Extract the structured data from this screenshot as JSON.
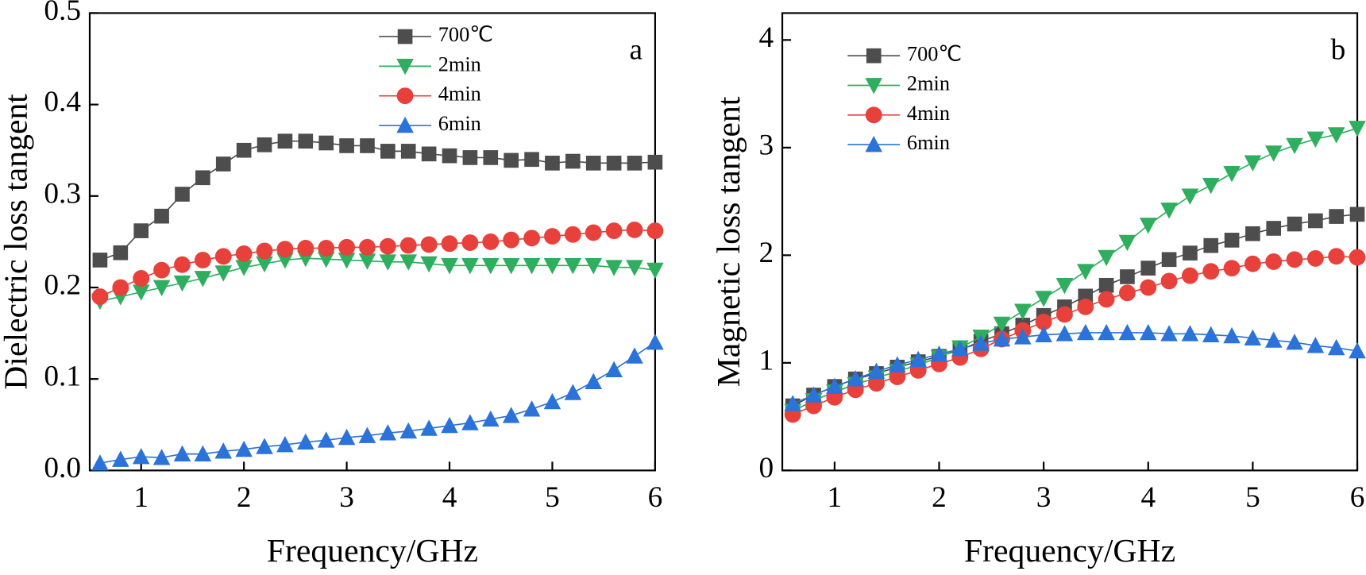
{
  "chart_data": [
    {
      "type": "line",
      "label": "a",
      "xlabel": "Frequency/GHz",
      "ylabel": "Dielectric loss tangent",
      "xlim": [
        0.5,
        6
      ],
      "xticks": [
        1,
        2,
        3,
        4,
        5,
        6
      ],
      "ylim": [
        0,
        0.5
      ],
      "yticks": [
        {
          "value": 0,
          "label": "0.0"
        },
        0.1,
        0.2,
        0.3,
        0.4,
        0.5
      ],
      "x": [
        0.6,
        0.8,
        1.0,
        1.2,
        1.4,
        1.6,
        1.8,
        2.0,
        2.2,
        2.4,
        2.6,
        2.8,
        3.0,
        3.2,
        3.4,
        3.6,
        3.8,
        4.0,
        4.2,
        4.4,
        4.6,
        4.8,
        5.0,
        5.2,
        5.4,
        5.6,
        5.8,
        6.0
      ],
      "series": [
        {
          "name": "700℃",
          "color": "#4d4d4d",
          "marker": "square",
          "values": [
            0.23,
            0.238,
            0.262,
            0.278,
            0.302,
            0.32,
            0.335,
            0.35,
            0.356,
            0.36,
            0.36,
            0.358,
            0.355,
            0.355,
            0.349,
            0.349,
            0.346,
            0.344,
            0.342,
            0.342,
            0.339,
            0.34,
            0.336,
            0.338,
            0.336,
            0.336,
            0.336,
            0.337
          ]
        },
        {
          "name": "2min",
          "color": "#2eae5e",
          "marker": "triangle-down",
          "values": [
            0.185,
            0.19,
            0.195,
            0.2,
            0.205,
            0.21,
            0.216,
            0.222,
            0.226,
            0.23,
            0.232,
            0.231,
            0.23,
            0.229,
            0.228,
            0.228,
            0.226,
            0.224,
            0.224,
            0.224,
            0.224,
            0.224,
            0.224,
            0.224,
            0.224,
            0.222,
            0.222,
            0.219
          ]
        },
        {
          "name": "4min",
          "color": "#e8403a",
          "marker": "circle",
          "values": [
            0.19,
            0.2,
            0.21,
            0.219,
            0.225,
            0.23,
            0.234,
            0.237,
            0.24,
            0.242,
            0.243,
            0.243,
            0.244,
            0.244,
            0.245,
            0.246,
            0.247,
            0.248,
            0.249,
            0.25,
            0.252,
            0.254,
            0.256,
            0.258,
            0.26,
            0.262,
            0.263,
            0.262
          ]
        },
        {
          "name": "6min",
          "color": "#2b73d9",
          "marker": "triangle-up",
          "values": [
            0.008,
            0.012,
            0.015,
            0.014,
            0.018,
            0.018,
            0.021,
            0.023,
            0.026,
            0.028,
            0.031,
            0.033,
            0.036,
            0.038,
            0.041,
            0.043,
            0.046,
            0.049,
            0.052,
            0.056,
            0.06,
            0.067,
            0.075,
            0.085,
            0.097,
            0.11,
            0.125,
            0.14
          ]
        }
      ]
    },
    {
      "type": "line",
      "label": "b",
      "xlabel": "Frequency/GHz",
      "ylabel": "Magnetic loss tangent",
      "xlim": [
        0.5,
        6
      ],
      "xticks": [
        1,
        2,
        3,
        4,
        5,
        6
      ],
      "ylim": [
        0,
        4.25
      ],
      "yticks": [
        0,
        1,
        2,
        3,
        4
      ],
      "x": [
        0.6,
        0.8,
        1.0,
        1.2,
        1.4,
        1.6,
        1.8,
        2.0,
        2.2,
        2.4,
        2.6,
        2.8,
        3.0,
        3.2,
        3.4,
        3.6,
        3.8,
        4.0,
        4.2,
        4.4,
        4.6,
        4.8,
        5.0,
        5.2,
        5.4,
        5.6,
        5.8,
        6.0
      ],
      "series": [
        {
          "name": "700℃",
          "color": "#4d4d4d",
          "marker": "square",
          "values": [
            0.6,
            0.7,
            0.78,
            0.85,
            0.9,
            0.96,
            1.01,
            1.06,
            1.12,
            1.2,
            1.27,
            1.35,
            1.44,
            1.52,
            1.62,
            1.72,
            1.8,
            1.88,
            1.96,
            2.02,
            2.09,
            2.14,
            2.2,
            2.25,
            2.29,
            2.32,
            2.36,
            2.38
          ]
        },
        {
          "name": "2min",
          "color": "#2eae5e",
          "marker": "triangle-down",
          "values": [
            0.55,
            0.65,
            0.73,
            0.8,
            0.86,
            0.92,
            0.98,
            1.05,
            1.14,
            1.24,
            1.36,
            1.48,
            1.6,
            1.72,
            1.85,
            1.98,
            2.12,
            2.28,
            2.42,
            2.55,
            2.65,
            2.76,
            2.86,
            2.95,
            3.02,
            3.08,
            3.12,
            3.18
          ]
        },
        {
          "name": "4min",
          "color": "#e8403a",
          "marker": "circle",
          "values": [
            0.52,
            0.6,
            0.68,
            0.75,
            0.81,
            0.87,
            0.93,
            0.99,
            1.05,
            1.13,
            1.22,
            1.3,
            1.38,
            1.45,
            1.52,
            1.59,
            1.65,
            1.7,
            1.76,
            1.81,
            1.85,
            1.88,
            1.92,
            1.94,
            1.96,
            1.97,
            1.99,
            1.98
          ]
        },
        {
          "name": "6min",
          "color": "#2b73d9",
          "marker": "triangle-up",
          "values": [
            0.62,
            0.7,
            0.78,
            0.85,
            0.92,
            0.98,
            1.03,
            1.08,
            1.13,
            1.18,
            1.22,
            1.24,
            1.26,
            1.27,
            1.28,
            1.28,
            1.28,
            1.28,
            1.27,
            1.27,
            1.26,
            1.25,
            1.23,
            1.21,
            1.19,
            1.16,
            1.14,
            1.11
          ]
        }
      ]
    }
  ]
}
